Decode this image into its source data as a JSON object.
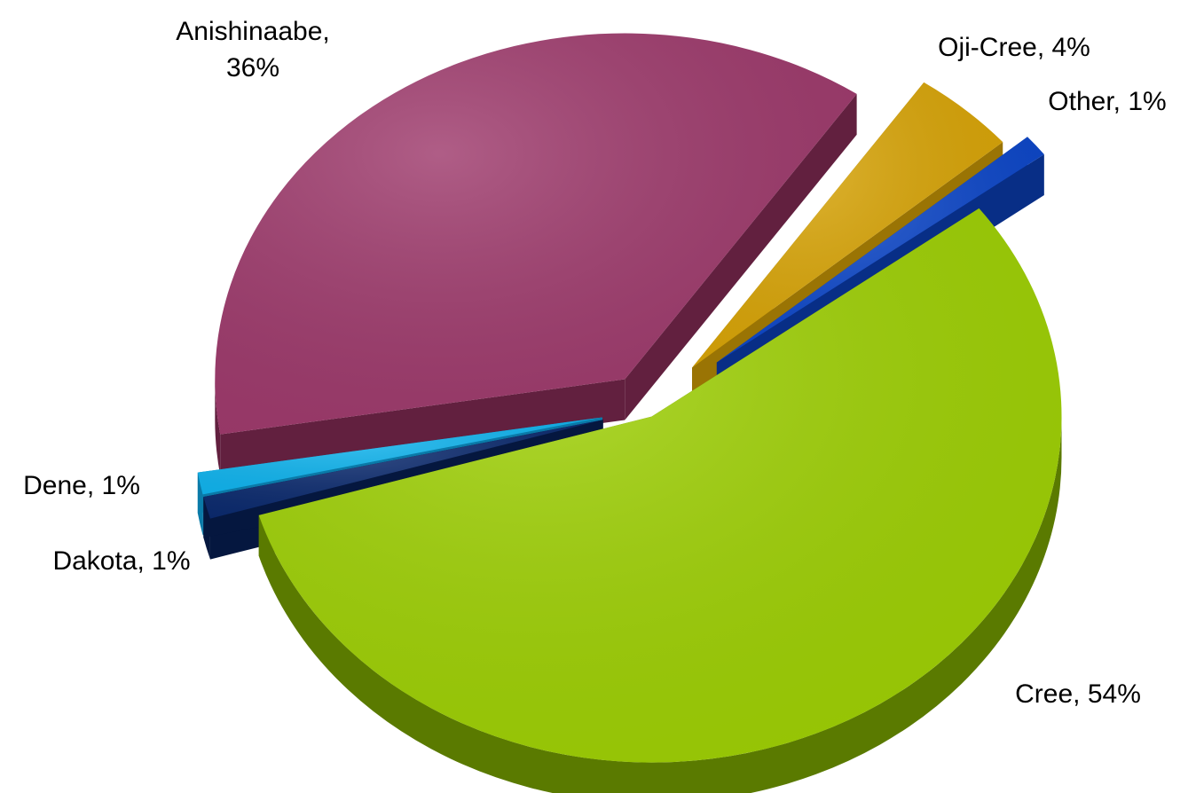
{
  "chart_data": {
    "type": "pie",
    "style": "3d-exploded",
    "legend": "none",
    "slices": [
      {
        "name": "Cree",
        "value": 54,
        "label_line1": "Cree, 54%",
        "label_line2": "",
        "color": "#9ed004",
        "side_color": "#5a7a00"
      },
      {
        "name": "Dakota",
        "value": 1,
        "label_line1": "Dakota, 1%",
        "label_line2": "",
        "color": "#0b2a6e",
        "side_color": "#05173f"
      },
      {
        "name": "Dene",
        "value": 1,
        "label_line1": "Dene, 1%",
        "label_line2": "",
        "color": "#10b4ee",
        "side_color": "#0a7aa8"
      },
      {
        "name": "Anishinaabe",
        "value": 36,
        "label_line1": "Anishinaabe,",
        "label_line2": "36%",
        "color": "#9e3a6c",
        "side_color": "#62203f"
      },
      {
        "name": "Oji-Cree",
        "value": 4,
        "label_line1": "Oji-Cree, 4%",
        "label_line2": "",
        "color": "#d8a406",
        "side_color": "#9a7404"
      },
      {
        "name": "Other",
        "value": 1,
        "label_line1": "Other, 1%",
        "label_line2": "",
        "color": "#0c46c8",
        "side_color": "#082e86"
      }
    ]
  }
}
